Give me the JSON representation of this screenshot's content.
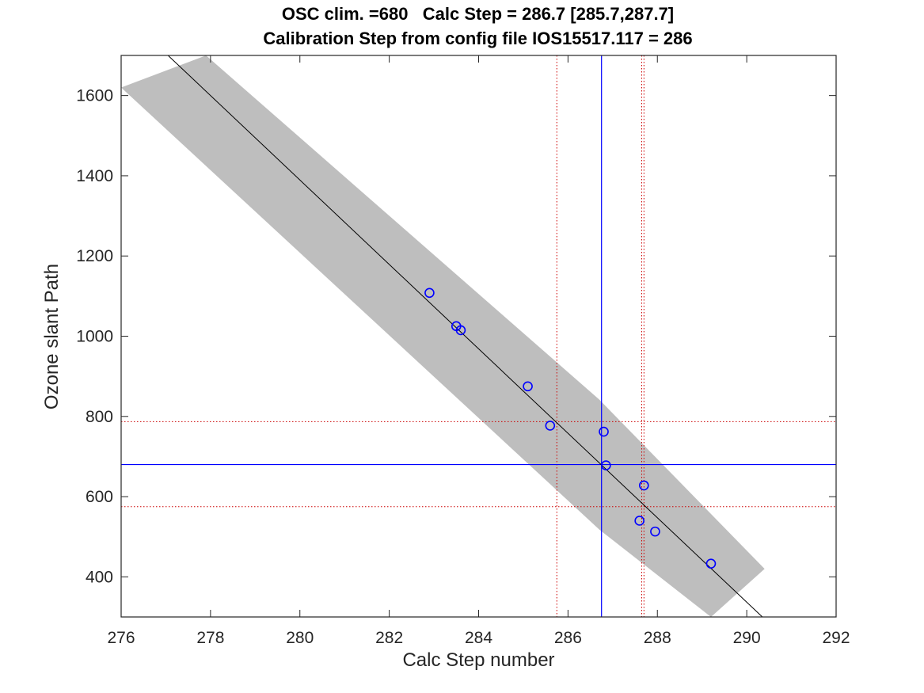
{
  "chart_data": {
    "type": "scatter",
    "title": [
      "OSC clim. =680   Calc Step = 286.7 [285.7,287.7]",
      "Calibration Step from config file IOS15517.117 = 286"
    ],
    "xlabel": "Calc Step number",
    "ylabel": "Ozone slant Path",
    "xlim": [
      276,
      292
    ],
    "ylim": [
      300,
      1700
    ],
    "xticks": [
      276,
      278,
      280,
      282,
      284,
      286,
      288,
      290,
      292
    ],
    "yticks": [
      400,
      600,
      800,
      1000,
      1200,
      1400,
      1600
    ],
    "grid": false,
    "colors": {
      "points": "#0000ff",
      "fit_line": "#000000",
      "confidence_band": "#bebebe",
      "estimate_lines": "#0000ff",
      "bound_lines": "#cc0000"
    },
    "points": [
      {
        "x": 282.9,
        "y": 1108
      },
      {
        "x": 283.5,
        "y": 1025
      },
      {
        "x": 283.6,
        "y": 1015
      },
      {
        "x": 285.1,
        "y": 875
      },
      {
        "x": 285.6,
        "y": 777
      },
      {
        "x": 286.8,
        "y": 762
      },
      {
        "x": 286.85,
        "y": 678
      },
      {
        "x": 287.7,
        "y": 628
      },
      {
        "x": 287.6,
        "y": 540
      },
      {
        "x": 287.95,
        "y": 513
      },
      {
        "x": 289.2,
        "y": 433
      }
    ],
    "fit_line": [
      {
        "x": 277.05,
        "y": 1700
      },
      {
        "x": 290.35,
        "y": 300
      }
    ],
    "confidence_band": {
      "upper": [
        {
          "x": 277.9,
          "y": 1700
        },
        {
          "x": 286.7,
          "y": 842
        },
        {
          "x": 290.4,
          "y": 420
        }
      ],
      "lower": [
        {
          "x": 276,
          "y": 1620
        },
        {
          "x": 286.7,
          "y": 518
        },
        {
          "x": 289.2,
          "y": 300
        }
      ]
    },
    "reference_lines": {
      "calc_step": 286.75,
      "osc_clim": 680,
      "step_bounds": [
        285.75,
        287.65,
        287.7
      ],
      "ozone_bounds": [
        787,
        575
      ]
    }
  }
}
